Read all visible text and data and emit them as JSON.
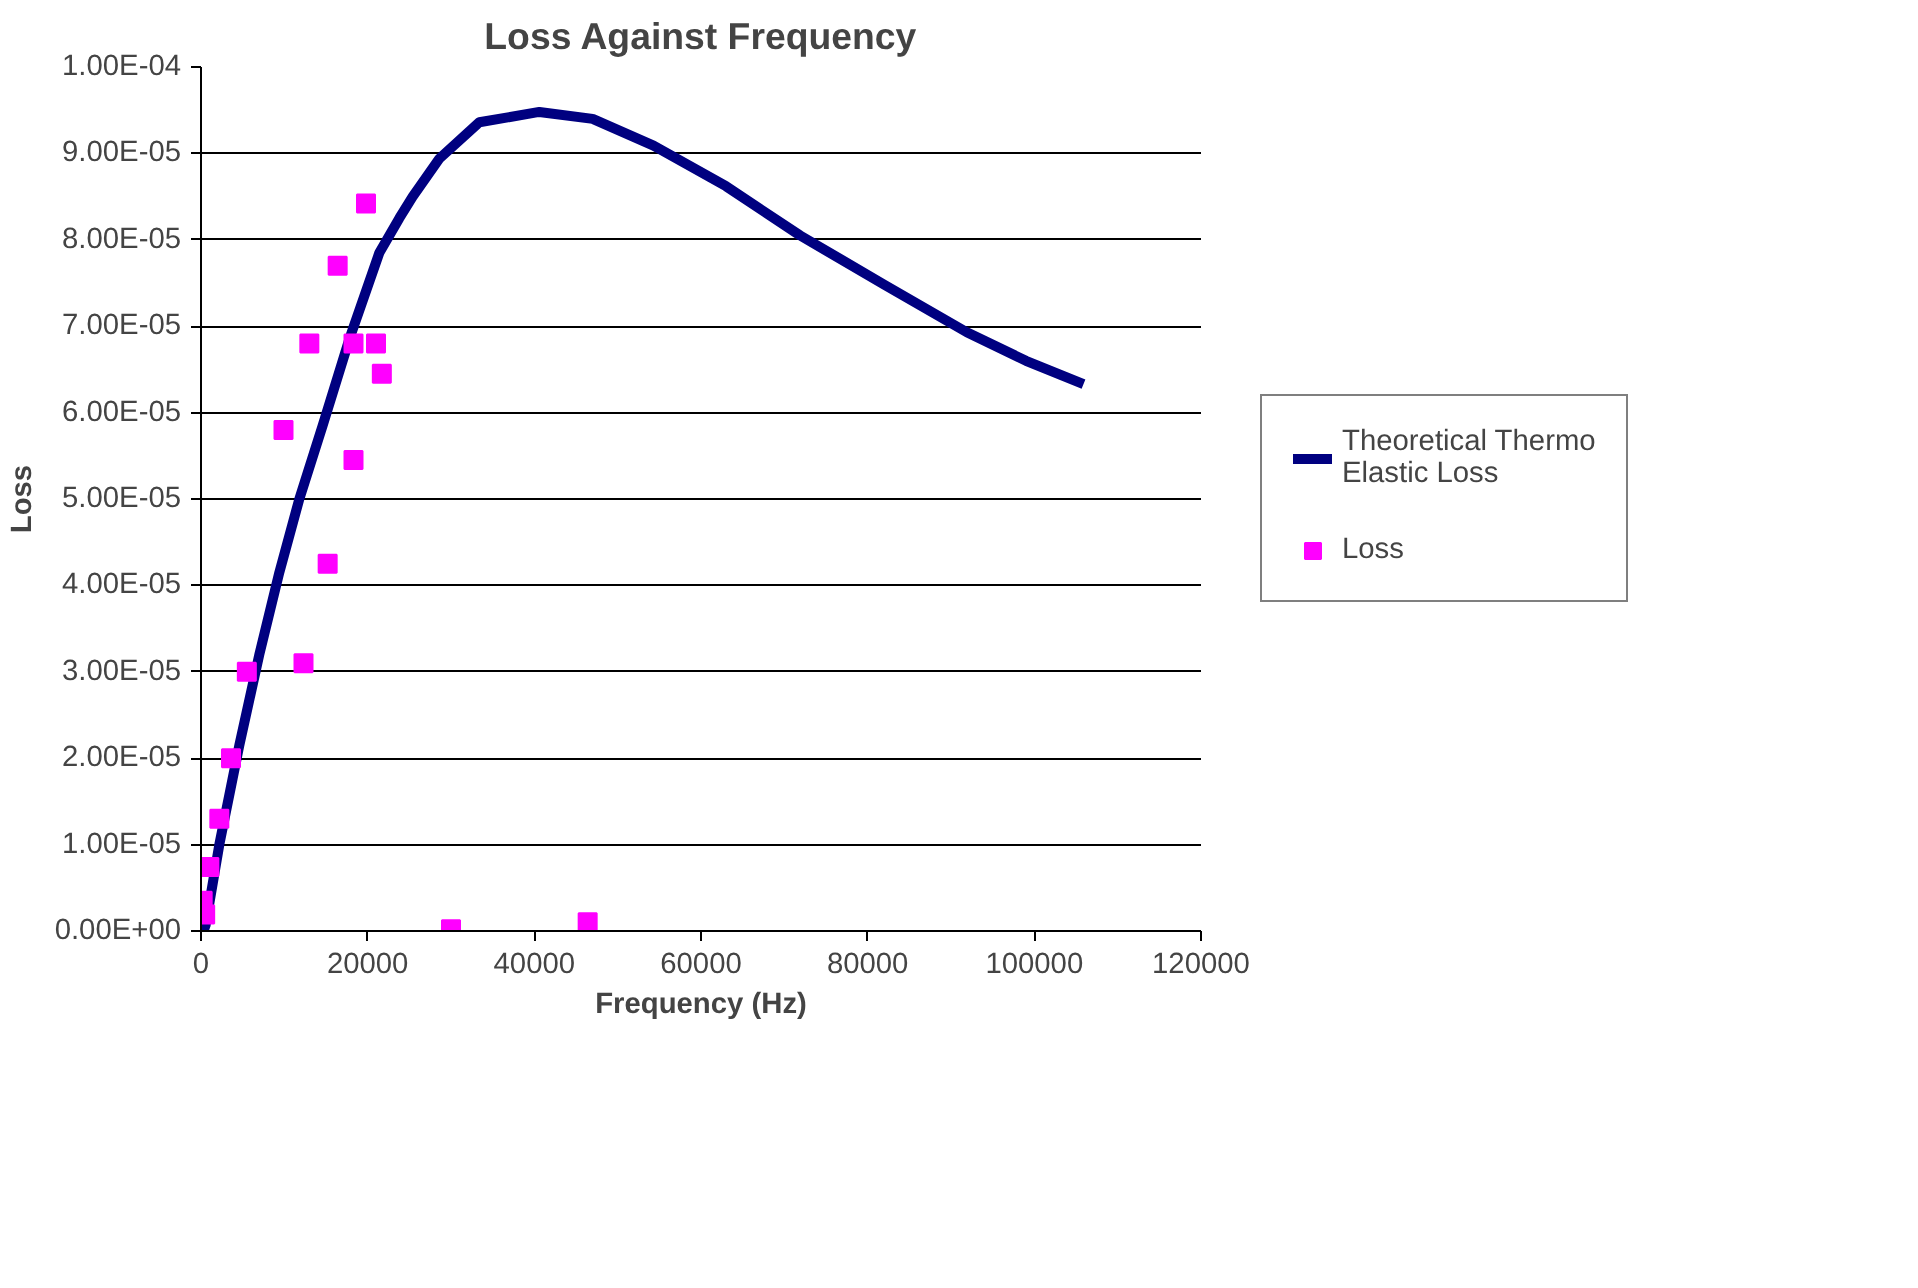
{
  "chart_data": {
    "type": "scatter",
    "title": "Loss Against Frequency",
    "xlabel": "Frequency (Hz)",
    "ylabel": "Loss",
    "xlim": [
      0,
      120000
    ],
    "xticks": [
      0,
      20000,
      40000,
      60000,
      80000,
      100000,
      120000
    ],
    "ylim": [
      0,
      0.0001
    ],
    "yticks": [
      {
        "value": 0,
        "label": "0.00E+00"
      },
      {
        "value": 1e-05,
        "label": "1.00E-05"
      },
      {
        "value": 2e-05,
        "label": "2.00E-05"
      },
      {
        "value": 3e-05,
        "label": "3.00E-05"
      },
      {
        "value": 4e-05,
        "label": "4.00E-05"
      },
      {
        "value": 5e-05,
        "label": "5.00E-05"
      },
      {
        "value": 6e-05,
        "label": "6.00E-05"
      },
      {
        "value": 7e-05,
        "label": "7.00E-05"
      },
      {
        "value": 8e-05,
        "label": "8.00E-05"
      },
      {
        "value": 9e-05,
        "label": "9.00E-05"
      },
      {
        "value": 0.0001,
        "label": "1.00E-04"
      }
    ],
    "grid": "y",
    "legend": "right",
    "series": [
      {
        "name": "Theoretical Thermo Elastic Loss",
        "type": "line",
        "marker": "none",
        "color": "#000080",
        "x": [
          300,
          560,
          2200,
          4600,
          7000,
          9400,
          11800,
          14600,
          17800,
          21400,
          23800,
          25400,
          28600,
          33400,
          40600,
          47000,
          54300,
          63000,
          71900,
          82000,
          91900,
          99000,
          105900
        ],
        "values": [
          0,
          7e-07,
          1e-05,
          2.15e-05,
          3.2e-05,
          4.15e-05,
          5e-05,
          5.85e-05,
          6.85e-05,
          7.85e-05,
          8.25e-05,
          8.5e-05,
          8.94e-05,
          9.36e-05,
          9.48e-05,
          9.4e-05,
          9.09e-05,
          8.62e-05,
          8.05e-05,
          7.48e-05,
          6.93e-05,
          6.6e-05,
          6.33e-05
        ]
      },
      {
        "name": "Loss",
        "type": "scatter",
        "marker": "square",
        "color": "#ff00ff",
        "x": [
          200,
          500,
          1000,
          2200,
          3600,
          5500,
          12300,
          9900,
          13000,
          15200,
          16400,
          18300,
          18300,
          19800,
          21000,
          21700,
          30000,
          46400
        ],
        "values": [
          3.5e-06,
          1.9e-06,
          7.4e-06,
          1.3e-05,
          2e-05,
          3e-05,
          3.1e-05,
          5.8e-05,
          6.8e-05,
          4.25e-05,
          7.7e-05,
          5.45e-05,
          6.8e-05,
          8.42e-05,
          6.8e-05,
          6.45e-05,
          2e-07,
          1e-06
        ]
      }
    ]
  }
}
